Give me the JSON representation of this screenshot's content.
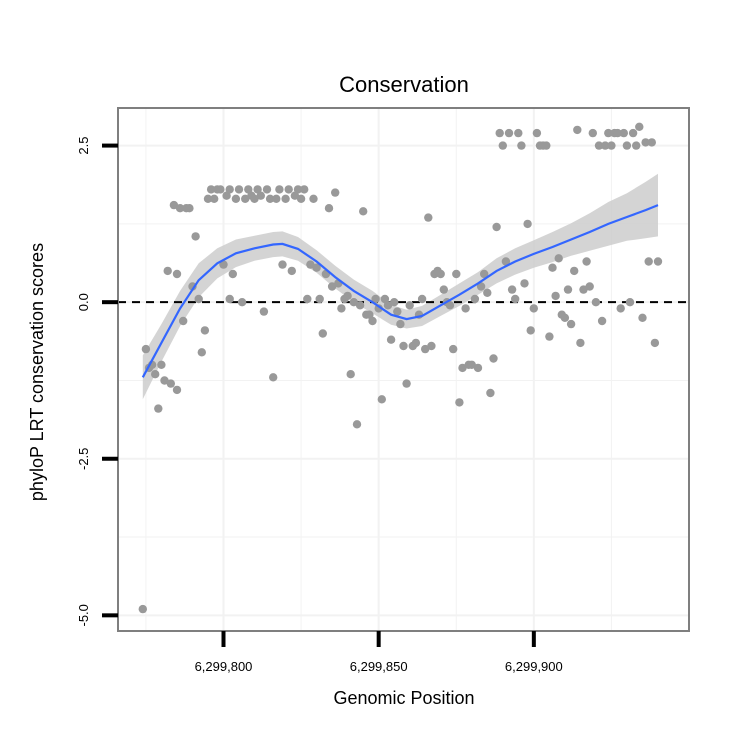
{
  "chart_data": {
    "type": "scatter",
    "title": "Conservation",
    "xlabel": "Genomic Position",
    "ylabel": "phyloP LRT conservation scores",
    "xlim": [
      6299766,
      6299950
    ],
    "ylim": [
      -5.25,
      3.1
    ],
    "x_ticks": [
      {
        "value": 6299800,
        "label": "6,299,800"
      },
      {
        "value": 6299850,
        "label": "6,299,850"
      },
      {
        "value": 6299900,
        "label": "6,299,900"
      }
    ],
    "y_ticks": [
      {
        "value": -5.0,
        "label": "-5.0"
      },
      {
        "value": -2.5,
        "label": "-2.5"
      },
      {
        "value": 0.0,
        "label": "0.0"
      },
      {
        "value": 2.5,
        "label": "2.5"
      }
    ],
    "grid": true,
    "reference_line": {
      "y": 0,
      "style": "dashed",
      "color": "#000000"
    },
    "colors": {
      "points": "#999999",
      "smooth": "#3366ff",
      "ribbon": "#cccccc",
      "panel_border": "#7f7f7f",
      "grid": "#f2f2f2"
    },
    "series": [
      {
        "type": "points",
        "points": [
          [
            6299774,
            -4.9
          ],
          [
            6299775,
            -0.75
          ],
          [
            6299776,
            -1.05
          ],
          [
            6299777,
            -1.0
          ],
          [
            6299778,
            -1.15
          ],
          [
            6299779,
            -1.7
          ],
          [
            6299780,
            -1.0
          ],
          [
            6299781,
            -1.25
          ],
          [
            6299782,
            0.5
          ],
          [
            6299783,
            -1.3
          ],
          [
            6299784,
            1.55
          ],
          [
            6299785,
            0.45
          ],
          [
            6299785,
            -1.4
          ],
          [
            6299786,
            1.5
          ],
          [
            6299787,
            -0.3
          ],
          [
            6299788,
            1.5
          ],
          [
            6299789,
            1.5
          ],
          [
            6299790,
            0.25
          ],
          [
            6299791,
            1.05
          ],
          [
            6299792,
            0.05
          ],
          [
            6299793,
            -0.8
          ],
          [
            6299794,
            -0.45
          ],
          [
            6299795,
            1.65
          ],
          [
            6299796,
            1.8
          ],
          [
            6299797,
            1.65
          ],
          [
            6299798,
            1.8
          ],
          [
            6299799,
            1.8
          ],
          [
            6299800,
            0.6
          ],
          [
            6299801,
            1.7
          ],
          [
            6299802,
            0.05
          ],
          [
            6299802,
            1.8
          ],
          [
            6299803,
            0.45
          ],
          [
            6299804,
            1.65
          ],
          [
            6299805,
            1.8
          ],
          [
            6299806,
            0.0
          ],
          [
            6299807,
            1.65
          ],
          [
            6299808,
            1.8
          ],
          [
            6299809,
            1.7
          ],
          [
            6299810,
            1.65
          ],
          [
            6299811,
            1.8
          ],
          [
            6299812,
            1.7
          ],
          [
            6299813,
            -0.15
          ],
          [
            6299814,
            1.8
          ],
          [
            6299815,
            1.65
          ],
          [
            6299816,
            -1.2
          ],
          [
            6299817,
            1.65
          ],
          [
            6299818,
            1.8
          ],
          [
            6299819,
            0.6
          ],
          [
            6299820,
            1.65
          ],
          [
            6299821,
            1.8
          ],
          [
            6299822,
            0.5
          ],
          [
            6299823,
            1.7
          ],
          [
            6299824,
            1.8
          ],
          [
            6299825,
            1.65
          ],
          [
            6299826,
            1.8
          ],
          [
            6299827,
            0.05
          ],
          [
            6299828,
            0.6
          ],
          [
            6299829,
            1.65
          ],
          [
            6299830,
            0.55
          ],
          [
            6299831,
            0.05
          ],
          [
            6299832,
            -0.5
          ],
          [
            6299833,
            0.45
          ],
          [
            6299834,
            1.5
          ],
          [
            6299835,
            0.25
          ],
          [
            6299836,
            1.75
          ],
          [
            6299837,
            0.3
          ],
          [
            6299838,
            -0.1
          ],
          [
            6299839,
            0.05
          ],
          [
            6299840,
            0.1
          ],
          [
            6299841,
            -1.15
          ],
          [
            6299842,
            0.0
          ],
          [
            6299843,
            -1.95
          ],
          [
            6299844,
            -0.05
          ],
          [
            6299845,
            1.45
          ],
          [
            6299846,
            -0.2
          ],
          [
            6299847,
            -0.2
          ],
          [
            6299848,
            -0.3
          ],
          [
            6299849,
            0.05
          ],
          [
            6299850,
            -0.1
          ],
          [
            6299851,
            -1.55
          ],
          [
            6299852,
            0.05
          ],
          [
            6299853,
            -0.05
          ],
          [
            6299854,
            -0.6
          ],
          [
            6299855,
            0.0
          ],
          [
            6299856,
            -0.15
          ],
          [
            6299857,
            -0.35
          ],
          [
            6299858,
            -0.7
          ],
          [
            6299859,
            -1.3
          ],
          [
            6299860,
            -0.05
          ],
          [
            6299861,
            -0.7
          ],
          [
            6299862,
            -0.65
          ],
          [
            6299863,
            -0.2
          ],
          [
            6299864,
            0.05
          ],
          [
            6299865,
            -0.75
          ],
          [
            6299866,
            1.35
          ],
          [
            6299867,
            -0.7
          ],
          [
            6299868,
            0.45
          ],
          [
            6299869,
            0.5
          ],
          [
            6299870,
            0.45
          ],
          [
            6299871,
            0.2
          ],
          [
            6299872,
            0.0
          ],
          [
            6299873,
            -0.05
          ],
          [
            6299874,
            -0.75
          ],
          [
            6299875,
            0.45
          ],
          [
            6299876,
            -1.6
          ],
          [
            6299877,
            -1.05
          ],
          [
            6299878,
            -0.1
          ],
          [
            6299879,
            -1.0
          ],
          [
            6299880,
            -1.0
          ],
          [
            6299881,
            0.05
          ],
          [
            6299882,
            -1.05
          ],
          [
            6299883,
            0.25
          ],
          [
            6299884,
            0.45
          ],
          [
            6299885,
            0.15
          ],
          [
            6299886,
            -1.45
          ],
          [
            6299887,
            -0.9
          ],
          [
            6299888,
            1.2
          ],
          [
            6299889,
            2.7
          ],
          [
            6299890,
            2.5
          ],
          [
            6299891,
            0.65
          ],
          [
            6299892,
            2.7
          ],
          [
            6299893,
            0.2
          ],
          [
            6299894,
            0.05
          ],
          [
            6299895,
            2.7
          ],
          [
            6299896,
            2.5
          ],
          [
            6299897,
            0.3
          ],
          [
            6299898,
            1.25
          ],
          [
            6299899,
            -0.45
          ],
          [
            6299900,
            -0.1
          ],
          [
            6299901,
            2.7
          ],
          [
            6299902,
            2.5
          ],
          [
            6299903,
            2.5
          ],
          [
            6299904,
            2.5
          ],
          [
            6299905,
            -0.55
          ],
          [
            6299906,
            0.55
          ],
          [
            6299907,
            0.1
          ],
          [
            6299908,
            0.7
          ],
          [
            6299909,
            -0.2
          ],
          [
            6299910,
            -0.25
          ],
          [
            6299911,
            0.2
          ],
          [
            6299912,
            -0.35
          ],
          [
            6299913,
            0.5
          ],
          [
            6299914,
            2.75
          ],
          [
            6299915,
            -0.65
          ],
          [
            6299916,
            0.2
          ],
          [
            6299917,
            0.65
          ],
          [
            6299918,
            0.25
          ],
          [
            6299919,
            2.7
          ],
          [
            6299920,
            0.0
          ],
          [
            6299921,
            2.5
          ],
          [
            6299922,
            -0.3
          ],
          [
            6299923,
            2.5
          ],
          [
            6299924,
            2.7
          ],
          [
            6299925,
            2.5
          ],
          [
            6299926,
            2.7
          ],
          [
            6299927,
            2.7
          ],
          [
            6299928,
            -0.1
          ],
          [
            6299929,
            2.7
          ],
          [
            6299930,
            2.5
          ],
          [
            6299931,
            0.0
          ],
          [
            6299932,
            2.7
          ],
          [
            6299933,
            2.5
          ],
          [
            6299934,
            2.8
          ],
          [
            6299935,
            -0.25
          ],
          [
            6299936,
            2.55
          ],
          [
            6299937,
            0.65
          ],
          [
            6299938,
            2.55
          ],
          [
            6299939,
            -0.65
          ],
          [
            6299940,
            0.65
          ]
        ]
      },
      {
        "type": "smooth",
        "x": [
          6299774,
          6299780,
          6299786,
          6299792,
          6299798,
          6299804,
          6299810,
          6299816,
          6299819,
          6299824,
          6299830,
          6299836,
          6299842,
          6299848,
          6299854,
          6299859,
          6299864,
          6299870,
          6299876,
          6299882,
          6299888,
          6299894,
          6299900,
          6299906,
          6299912,
          6299918,
          6299924,
          6299930,
          6299936,
          6299940
        ],
        "y": [
          -1.2,
          -0.65,
          -0.1,
          0.35,
          0.62,
          0.78,
          0.86,
          0.92,
          0.93,
          0.85,
          0.65,
          0.4,
          0.18,
          0.0,
          -0.2,
          -0.27,
          -0.22,
          -0.05,
          0.12,
          0.3,
          0.5,
          0.65,
          0.77,
          0.88,
          1.0,
          1.12,
          1.25,
          1.36,
          1.47,
          1.55
        ],
        "lower": [
          -1.55,
          -0.95,
          -0.38,
          0.08,
          0.38,
          0.56,
          0.66,
          0.72,
          0.73,
          0.66,
          0.47,
          0.22,
          0.0,
          -0.18,
          -0.36,
          -0.42,
          -0.38,
          -0.22,
          -0.06,
          0.12,
          0.3,
          0.44,
          0.55,
          0.64,
          0.74,
          0.82,
          0.9,
          0.98,
          1.02,
          1.05
        ],
        "upper": [
          -0.85,
          -0.35,
          0.18,
          0.62,
          0.86,
          1.0,
          1.06,
          1.12,
          1.13,
          1.04,
          0.83,
          0.58,
          0.36,
          0.18,
          -0.04,
          -0.12,
          -0.06,
          0.12,
          0.3,
          0.48,
          0.7,
          0.86,
          0.99,
          1.12,
          1.26,
          1.42,
          1.6,
          1.74,
          1.92,
          2.05
        ]
      }
    ]
  }
}
